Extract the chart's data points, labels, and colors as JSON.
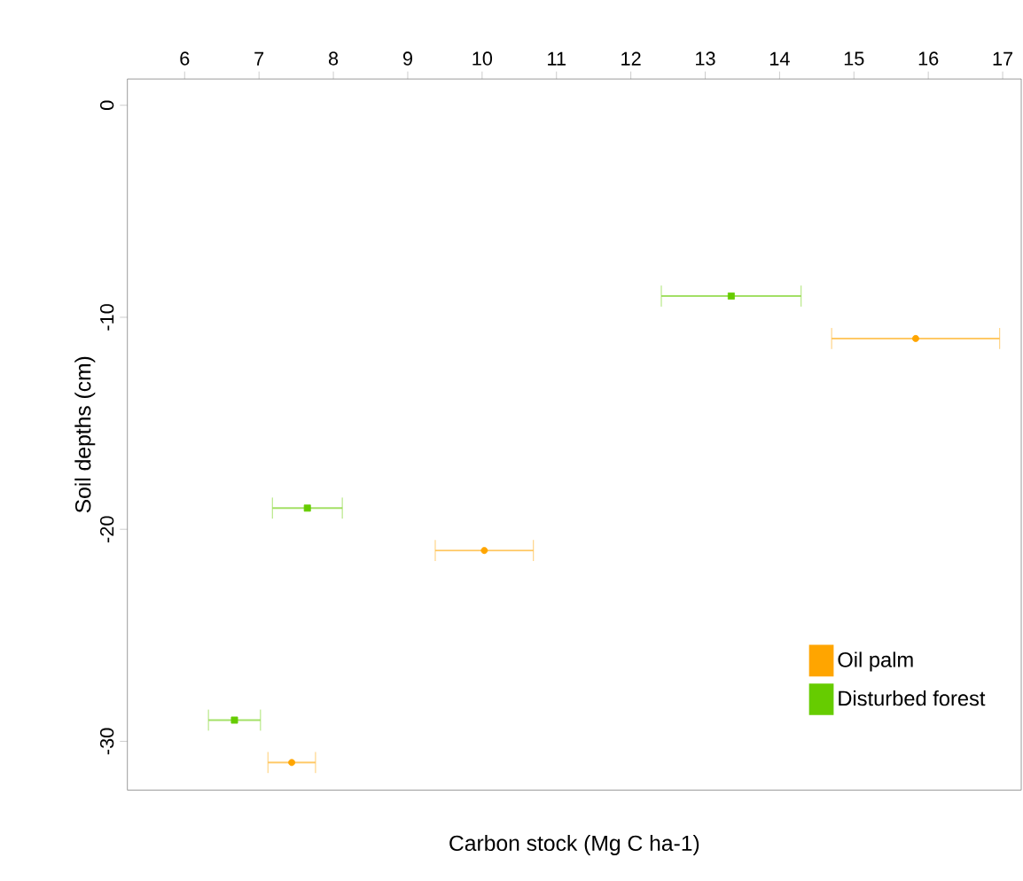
{
  "chart_data": {
    "type": "scatter",
    "xlabel": "Carbon stock (Mg C ha-1)",
    "ylabel": "Soil depths (cm)",
    "xlim": [
      5.23,
      17.25
    ],
    "ylim": [
      -32.3,
      1.24
    ],
    "xticks": [
      6,
      7,
      8,
      9,
      10,
      11,
      12,
      13,
      14,
      15,
      16,
      17
    ],
    "yticks": [
      0,
      -10,
      -20,
      -30
    ],
    "legend": "bottom right",
    "grid": false,
    "series": [
      {
        "name": "Oil palm",
        "color": "#ffa500",
        "marker": "circle",
        "x": [
          15.83,
          10.03,
          7.44
        ],
        "values": [
          -11,
          -21,
          -31
        ],
        "xerrors": [
          1.13,
          0.66,
          0.32
        ]
      },
      {
        "name": "Disturbed forest",
        "color": "#66cc00",
        "marker": "square",
        "x": [
          13.35,
          7.65,
          6.67
        ],
        "values": [
          -9,
          -19,
          -29
        ],
        "xerrors": [
          0.94,
          0.47,
          0.35
        ]
      }
    ]
  }
}
